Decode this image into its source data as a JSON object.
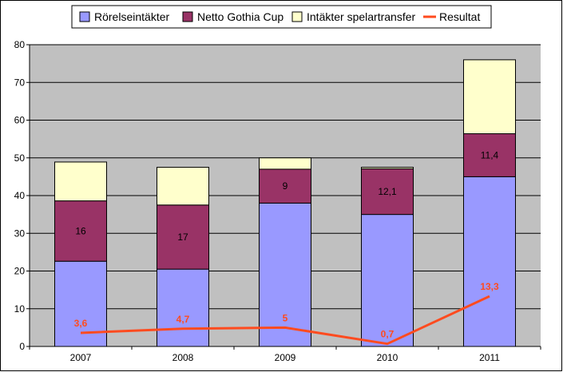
{
  "chart_data": {
    "type": "bar",
    "stacked": true,
    "categories": [
      "2007",
      "2008",
      "2009",
      "2010",
      "2011"
    ],
    "series": [
      {
        "name": "Rörelseintäkter",
        "type": "bar",
        "color": "#9999ff",
        "values": [
          22.6,
          20.5,
          38,
          35,
          45
        ]
      },
      {
        "name": "Netto Gothia Cup",
        "type": "bar",
        "color": "#993366",
        "values": [
          16,
          17,
          9,
          12.1,
          11.4
        ],
        "labels": [
          "16",
          "17",
          "9",
          "12,1",
          "11,4"
        ]
      },
      {
        "name": "Intäkter spelartransfer",
        "type": "bar",
        "color": "#ffffcc",
        "values": [
          10.3,
          10,
          3,
          0.4,
          19.6
        ]
      },
      {
        "name": "Resultat",
        "type": "line",
        "color": "#ff4b1f",
        "values": [
          3.6,
          4.7,
          5,
          0.7,
          13.3
        ],
        "labels": [
          "3,6",
          "4,7",
          "5",
          "0,7",
          "13,3"
        ]
      }
    ],
    "yticks": [
      "0",
      "10",
      "20",
      "30",
      "40",
      "50",
      "60",
      "70",
      "80"
    ],
    "ylim": [
      0,
      80
    ],
    "plot_background": "#c0c0c0",
    "grid": true,
    "legend_position": "top"
  }
}
